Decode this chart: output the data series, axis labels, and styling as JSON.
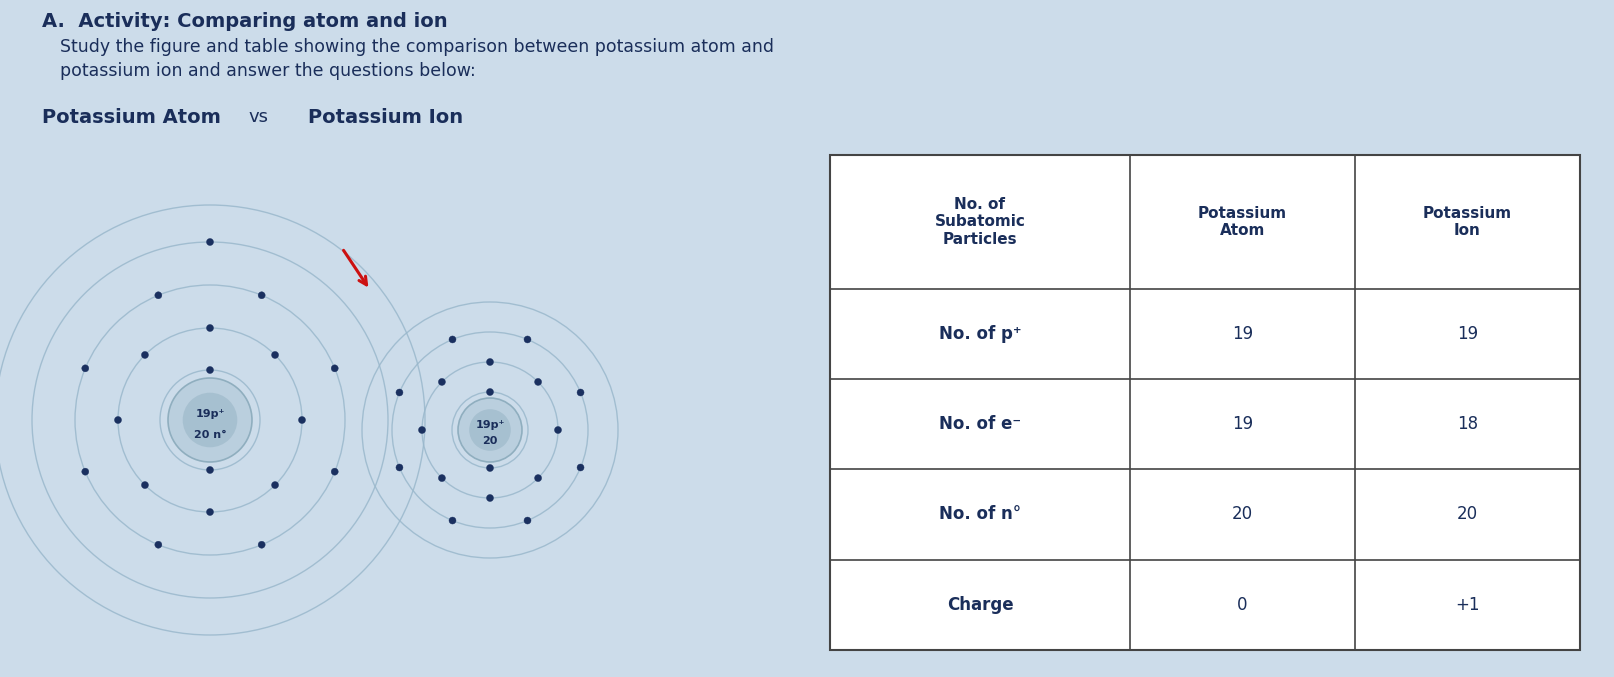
{
  "bg_color": "#ccdcea",
  "title_bold": "A.  Activity: Comparing atom and ion",
  "subtitle": "Study the figure and table showing the comparison between potassium atom and\npotassium ion and answer the questions below:",
  "section_title_atom": "Potassium Atom",
  "section_title_vs": "vs",
  "section_title_ion": "Potassium Ion",
  "text_color": "#1a2e5a",
  "atom_label_line1": "19p⁺",
  "atom_label_line2": "20 n°",
  "ion_label_line1": "19p⁺",
  "ion_label_line2": "20",
  "orbit_color": "#9ab8cc",
  "nucleus_color_light": "#b8cedd",
  "nucleus_color_dark": "#8aaabb",
  "electron_color": "#1a3060",
  "electron_size": 3.5,
  "arrow_color": "#cc1111",
  "table_border_color": "#444444",
  "table_bg": "#ffffff",
  "table_text_color": "#1a2e5a",
  "col_headers": [
    "No. of\nSubatomic\nParticles",
    "Potassium\nAtom",
    "Potassium\nIon"
  ],
  "rows": [
    [
      "No. of p⁺",
      "19",
      "19"
    ],
    [
      "No. of e⁻",
      "19",
      "18"
    ],
    [
      "No. of n°",
      "20",
      "20"
    ],
    [
      "Charge",
      "0",
      "+1"
    ]
  ]
}
